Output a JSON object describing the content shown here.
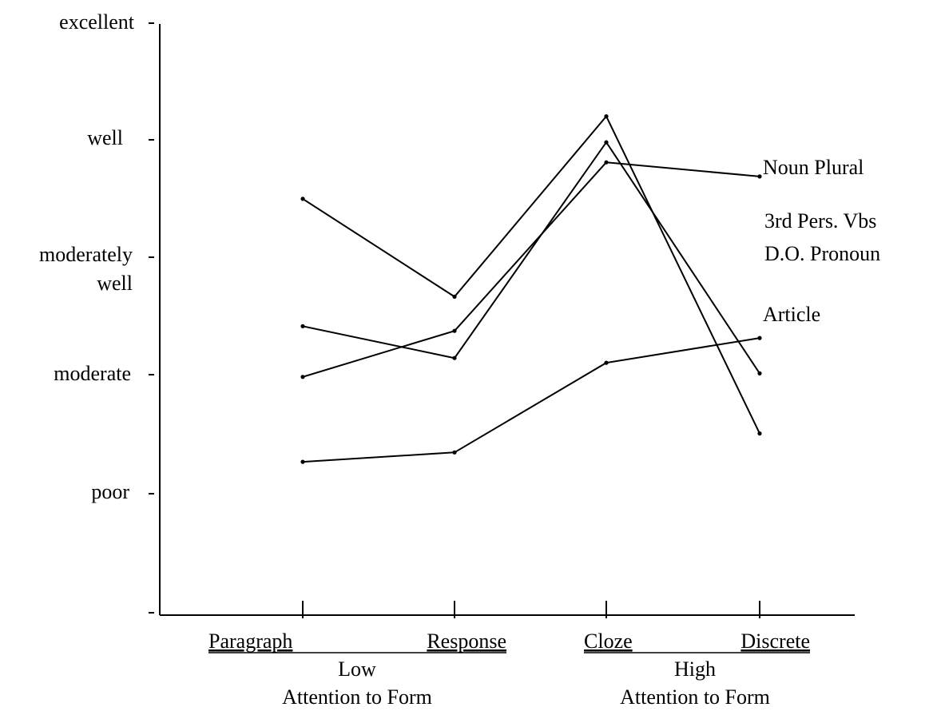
{
  "chart_data": {
    "type": "line",
    "title": "",
    "xlabel": "",
    "ylabel": "",
    "grid": false,
    "legend": "direct labels at right end of each line",
    "y_levels": [
      "",
      "poor",
      "moderate",
      "moderately\nwell",
      "well",
      "excellent"
    ],
    "ylim": [
      0,
      5
    ],
    "categories": [
      "Paragraph",
      "Response",
      "Cloze",
      "Discrete"
    ],
    "category_groups": [
      {
        "level": "Low",
        "label": "Attention to Form",
        "categories": [
          "Paragraph",
          "Response"
        ]
      },
      {
        "level": "High",
        "label": "Attention to Form",
        "categories": [
          "Cloze",
          "Discrete"
        ]
      }
    ],
    "series": [
      {
        "name": "Noun Plural",
        "values": [
          2.0,
          2.39,
          3.82,
          3.7
        ]
      },
      {
        "name": "3rd Pers. Vbs",
        "values": [
          1.28,
          1.36,
          2.12,
          2.33
        ]
      },
      {
        "name": "D.O. Pronoun",
        "values": [
          2.43,
          2.16,
          3.99,
          2.03
        ]
      },
      {
        "name": "Article",
        "values": [
          3.51,
          2.68,
          4.21,
          1.52
        ]
      }
    ]
  },
  "y_axis": {
    "labels": {
      "excellent": "excellent",
      "well": "well",
      "moderately_line1": "moderately",
      "moderately_line2": "well",
      "moderate": "moderate",
      "poor": "poor"
    }
  },
  "x_axis": {
    "paragraph": "Paragraph",
    "response": "Response",
    "cloze": "Cloze",
    "discrete": "Discrete",
    "low": "Low",
    "high": "High",
    "low_caption": "Attention to Form",
    "high_caption": "Attention to Form"
  },
  "series_labels": {
    "noun_plural": "Noun Plural",
    "third_pers": "3rd Pers. Vbs",
    "do_pronoun": "D.O. Pronoun",
    "article": "Article"
  }
}
